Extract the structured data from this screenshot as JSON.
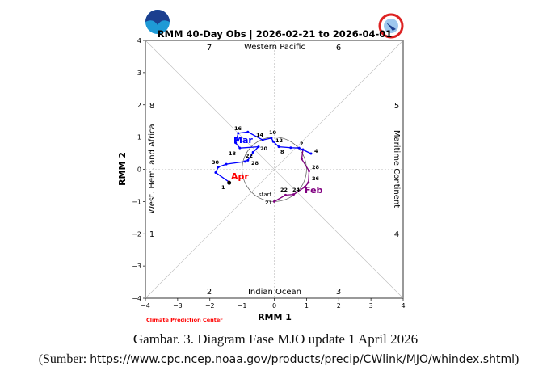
{
  "chart_data": {
    "type": "line",
    "title": "RMM 40-Day Obs | 2026-02-21 to 2026-04-01",
    "xlabel": "RMM 1",
    "ylabel": "RMM 2",
    "xlim": [
      -4,
      4
    ],
    "ylim": [
      -4,
      4
    ],
    "xticks": [
      "−4",
      "−3",
      "−2",
      "−1",
      "0",
      "1",
      "2",
      "3",
      "4"
    ],
    "yticks": [
      "4",
      "3",
      "2",
      "1",
      "0",
      "−1",
      "−2",
      "−3",
      "−4"
    ],
    "unit_circle": true,
    "phase_labels": [
      "1",
      "2",
      "3",
      "4",
      "5",
      "6",
      "7",
      "8"
    ],
    "region_labels": {
      "top": "Western Pacific",
      "bottom": "Indian Ocean",
      "left": "West. Hem. and Africa",
      "right": "Maritime Continent"
    },
    "credit": "Climate Prediction Center",
    "start_label": "start",
    "series": [
      {
        "name": "Feb",
        "color": "#800080",
        "points": [
          {
            "x": 0.0,
            "y": -1.0,
            "label": "21"
          },
          {
            "x": 0.35,
            "y": -0.8,
            "label": "22"
          },
          {
            "x": 0.6,
            "y": -0.78,
            "label": "24"
          },
          {
            "x": 0.95,
            "y": -0.55,
            "label": ""
          },
          {
            "x": 1.06,
            "y": -0.41,
            "label": "26"
          },
          {
            "x": 1.08,
            "y": -0.05,
            "label": "28"
          },
          {
            "x": 0.85,
            "y": 0.32,
            "label": ""
          },
          {
            "x": 0.89,
            "y": 0.61,
            "label": ""
          }
        ]
      },
      {
        "name": "Mar",
        "color": "#0000ff",
        "points": [
          {
            "x": 0.89,
            "y": 0.61,
            "label": "2"
          },
          {
            "x": 1.14,
            "y": 0.49,
            "label": "4"
          },
          {
            "x": 0.77,
            "y": 0.66,
            "label": ""
          },
          {
            "x": 0.51,
            "y": 0.67,
            "label": ""
          },
          {
            "x": 0.14,
            "y": 0.7,
            "label": "8"
          },
          {
            "x": -0.03,
            "y": 0.86,
            "label": "12"
          },
          {
            "x": -0.09,
            "y": 0.97,
            "label": "10"
          },
          {
            "x": -0.36,
            "y": 0.91,
            "label": "14"
          },
          {
            "x": -0.82,
            "y": 1.16,
            "label": ""
          },
          {
            "x": -1.12,
            "y": 1.12,
            "label": "16"
          },
          {
            "x": -1.2,
            "y": 0.82,
            "label": ""
          },
          {
            "x": -1.07,
            "y": 0.66,
            "label": "18"
          },
          {
            "x": -0.49,
            "y": 0.7,
            "label": "20"
          },
          {
            "x": -0.66,
            "y": 0.53,
            "label": "22"
          },
          {
            "x": -0.82,
            "y": 0.28,
            "label": "28"
          },
          {
            "x": -0.91,
            "y": 0.24,
            "label": ""
          },
          {
            "x": -1.49,
            "y": 0.16,
            "label": ""
          },
          {
            "x": -1.74,
            "y": 0.07,
            "label": "30"
          },
          {
            "x": -1.82,
            "y": -0.1,
            "label": ""
          },
          {
            "x": -1.41,
            "y": -0.39,
            "label": ""
          }
        ]
      },
      {
        "name": "Apr",
        "color": "#ff0000",
        "points": [
          {
            "x": -1.41,
            "y": -0.39,
            "label": ""
          },
          {
            "x": -1.4,
            "y": -0.42,
            "label": "1"
          }
        ]
      }
    ]
  },
  "caption": "Gambar. 3. Diagram Fase MJO update 1 April 2026",
  "source": {
    "prefix": "(Sumber: ",
    "url": "https://www.cpc.ncep.noaa.gov/products/precip/CWlink/MJO/whindex.shtml",
    "suffix": ")"
  },
  "logos": {
    "left": "NOAA",
    "right": "National Weather Service"
  }
}
